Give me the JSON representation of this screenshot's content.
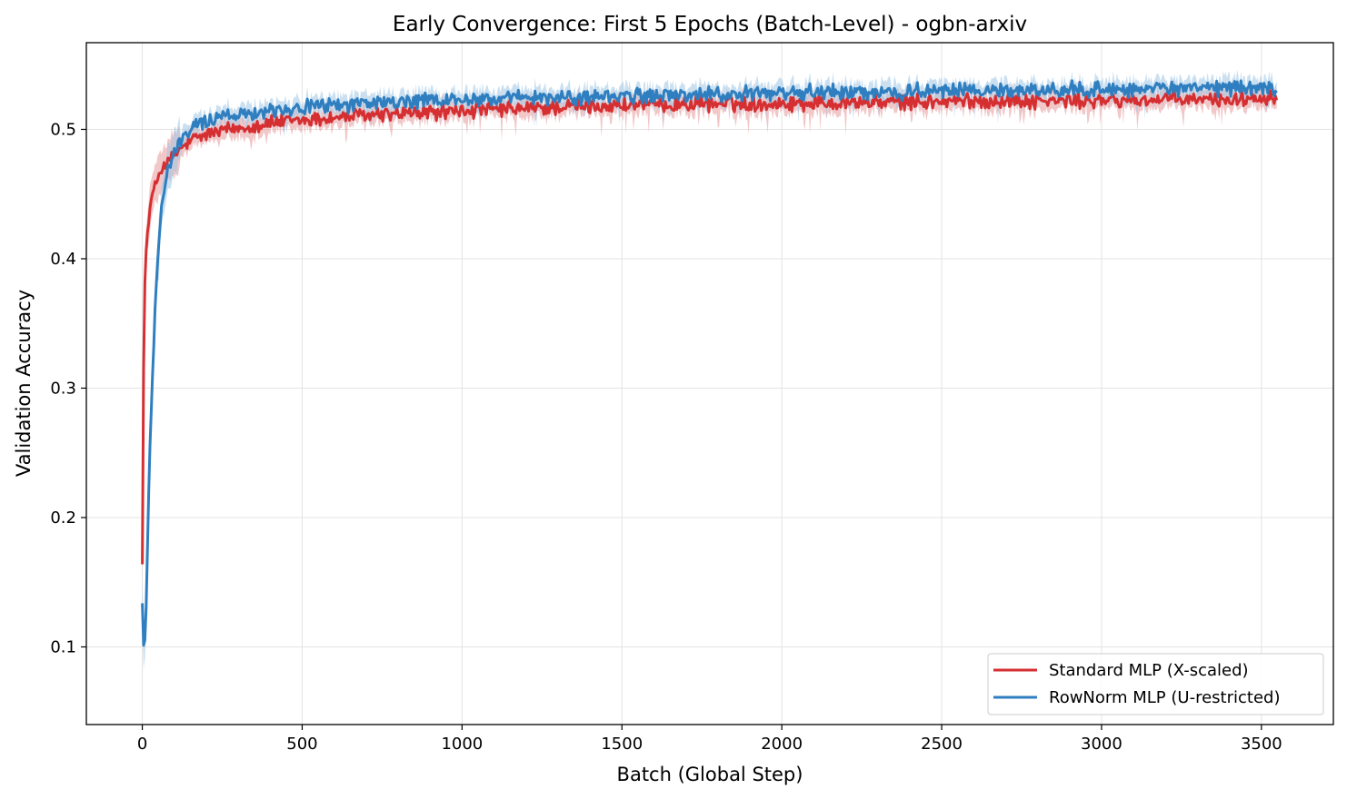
{
  "chart_data": {
    "type": "line",
    "title": "Early Convergence: First 5 Epochs (Batch-Level) - ogbn-arxiv",
    "xlabel": "Batch (Global Step)",
    "ylabel": "Validation Accuracy",
    "xlim": [
      -175,
      3725
    ],
    "ylim": [
      0.04,
      0.567
    ],
    "xticks": [
      0,
      500,
      1000,
      1500,
      2000,
      2500,
      3000,
      3500
    ],
    "yticks": [
      0.1,
      0.2,
      0.3,
      0.4,
      0.5
    ],
    "grid": true,
    "legend_position": "lower-right",
    "series": [
      {
        "name": "Standard MLP (X-scaled)",
        "color": "#d62f32",
        "band_color": "#e8999b",
        "x": [
          0,
          5,
          10,
          20,
          30,
          40,
          50,
          60,
          80,
          100,
          130,
          160,
          200,
          250,
          300,
          350,
          400,
          500,
          600,
          700,
          800,
          900,
          1000,
          1200,
          1400,
          1600,
          1800,
          2000,
          2200,
          2400,
          2600,
          2800,
          3000,
          3200,
          3400,
          3550
        ],
        "values": [
          0.17,
          0.35,
          0.4,
          0.43,
          0.448,
          0.455,
          0.465,
          0.47,
          0.474,
          0.48,
          0.487,
          0.492,
          0.496,
          0.499,
          0.501,
          0.503,
          0.505,
          0.507,
          0.509,
          0.511,
          0.512,
          0.513,
          0.514,
          0.516,
          0.518,
          0.519,
          0.52,
          0.52,
          0.521,
          0.521,
          0.522,
          0.522,
          0.522,
          0.523,
          0.523,
          0.526
        ]
      },
      {
        "name": "RowNorm MLP (U-restricted)",
        "color": "#2f7fc0",
        "band_color": "#9fc7e6",
        "x": [
          0,
          5,
          10,
          20,
          30,
          40,
          50,
          60,
          80,
          100,
          130,
          160,
          200,
          250,
          300,
          350,
          400,
          500,
          600,
          700,
          800,
          900,
          1000,
          1200,
          1400,
          1600,
          1800,
          2000,
          2200,
          2400,
          2600,
          2800,
          3000,
          3200,
          3400,
          3550
        ],
        "values": [
          0.135,
          0.09,
          0.11,
          0.22,
          0.3,
          0.36,
          0.41,
          0.44,
          0.468,
          0.482,
          0.494,
          0.502,
          0.507,
          0.51,
          0.512,
          0.514,
          0.515,
          0.517,
          0.519,
          0.52,
          0.521,
          0.522,
          0.523,
          0.524,
          0.525,
          0.526,
          0.527,
          0.528,
          0.529,
          0.529,
          0.53,
          0.53,
          0.531,
          0.531,
          0.532,
          0.532
        ]
      }
    ]
  }
}
